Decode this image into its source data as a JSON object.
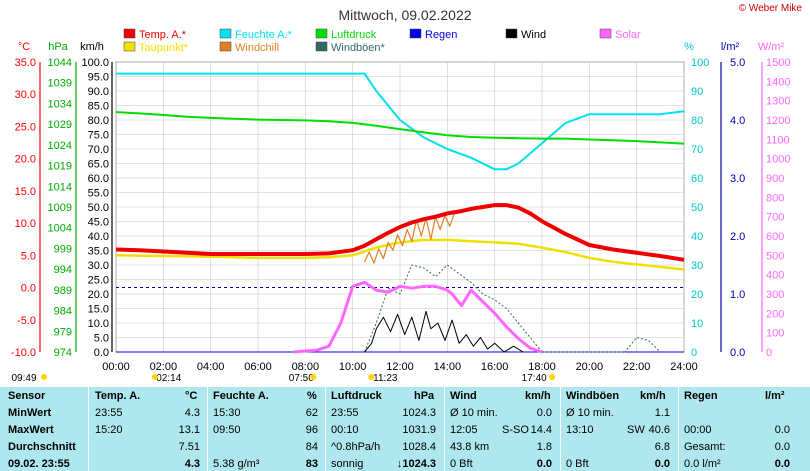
{
  "credit": "© Weber Mike",
  "colors": {
    "temp": "#ee0000",
    "dew": "#f0e000",
    "humidity": "#00e0f0",
    "windchill": "#e08020",
    "pressure": "#00dd00",
    "rain": "#0000ee",
    "wind": "#000000",
    "gust": "#336666",
    "solar": "#ff66ff",
    "table_bg": "#aee8ee",
    "axis_celsius": "#ff0000",
    "axis_hpa": "#00aa00",
    "axis_percent": "#00c8c8",
    "axis_rain": "#0000aa",
    "axis_solar": "#ff66ff"
  },
  "chart_data": {
    "type": "line",
    "title": "Mittwoch, 09.02.2022",
    "x_unit": "hours",
    "x_ticks": [
      "00:00",
      "02:00",
      "04:00",
      "06:00",
      "08:00",
      "10:00",
      "12:00",
      "14:00",
      "16:00",
      "18:00",
      "20:00",
      "22:00",
      "24:00"
    ],
    "xlim": [
      0,
      24
    ],
    "grid": true,
    "legend_placement": "top",
    "legend": [
      {
        "label": "Temp. A.*",
        "color": "#ee0000"
      },
      {
        "label": "Feuchte A.*",
        "color": "#00e0f0"
      },
      {
        "label": "Luftdruck",
        "color": "#00dd00"
      },
      {
        "label": "Regen",
        "color": "#0000ee"
      },
      {
        "label": "Wind",
        "color": "#000000"
      },
      {
        "label": "Solar",
        "color": "#ff66ff"
      },
      {
        "label": "Taupunkt*",
        "color": "#f0e000"
      },
      {
        "label": "Windchill",
        "color": "#e08020"
      },
      {
        "label": "Windböen*",
        "color": "#336666"
      }
    ],
    "axes": {
      "celsius": {
        "label": "°C",
        "ticks": [
          "35.0",
          "30.0",
          "25.0",
          "20.0",
          "15.0",
          "10.0",
          "5.0",
          "0.0",
          "-5.0",
          "-10.0"
        ],
        "range": [
          -10,
          35
        ]
      },
      "hpa": {
        "label": "hPa",
        "ticks": [
          "1044",
          "1039",
          "1034",
          "1029",
          "1024",
          "1019",
          "1014",
          "1009",
          "1004",
          "999",
          "994",
          "989",
          "984",
          "979",
          "974"
        ],
        "range": [
          974,
          1044
        ]
      },
      "kmh": {
        "label": "km/h",
        "ticks": [
          "100.0",
          "95.0",
          "90.0",
          "85.0",
          "80.0",
          "75.0",
          "70.0",
          "65.0",
          "60.0",
          "55.0",
          "50.0",
          "45.0",
          "40.0",
          "35.0",
          "30.0",
          "25.0",
          "20.0",
          "15.0",
          "10.0",
          "5.0",
          "0.0"
        ],
        "range": [
          0,
          100
        ]
      },
      "percent": {
        "label": "%",
        "ticks": [
          "100",
          "90",
          "80",
          "70",
          "60",
          "50",
          "40",
          "30",
          "20",
          "10",
          "0"
        ],
        "range": [
          0,
          100
        ]
      },
      "rain": {
        "label": "l/m²",
        "ticks": [
          "5.0",
          "4.0",
          "3.0",
          "2.0",
          "1.0",
          "0.0"
        ],
        "range": [
          0,
          5
        ]
      },
      "solar": {
        "label": "W/m²",
        "ticks": [
          "1500",
          "1400",
          "1300",
          "1200",
          "1100",
          "1000",
          "900",
          "800",
          "700",
          "600",
          "500",
          "400",
          "300",
          "200",
          "100",
          "0"
        ],
        "range": [
          0,
          1500
        ]
      }
    },
    "series": [
      {
        "name": "Temp. A.*",
        "axis": "celsius",
        "x": [
          0,
          1,
          2,
          3,
          4,
          5,
          6,
          7,
          8,
          9,
          10,
          10.5,
          11,
          11.5,
          12,
          12.5,
          13,
          13.5,
          14,
          14.5,
          15,
          15.5,
          16,
          16.5,
          17,
          17.5,
          18,
          19,
          20,
          21,
          22,
          23,
          24
        ],
        "y": [
          5.9,
          5.8,
          5.6,
          5.4,
          5.2,
          5.2,
          5.2,
          5.2,
          5.2,
          5.3,
          5.8,
          6.5,
          7.5,
          8.5,
          9.4,
          10.1,
          10.6,
          11.0,
          11.5,
          11.8,
          12.2,
          12.5,
          12.8,
          12.8,
          12.4,
          11.5,
          10.3,
          8.3,
          6.6,
          5.9,
          5.4,
          4.9,
          4.3
        ]
      },
      {
        "name": "Taupunkt*",
        "axis": "celsius",
        "x": [
          0,
          2,
          4,
          6,
          8,
          9,
          10,
          11,
          12,
          13,
          14,
          15,
          16,
          17,
          18,
          19,
          20,
          21,
          22,
          23,
          24
        ],
        "y": [
          5.0,
          4.9,
          4.8,
          4.6,
          4.6,
          4.7,
          5.0,
          6.2,
          7.0,
          7.4,
          7.4,
          7.2,
          7.0,
          6.8,
          6.2,
          5.5,
          4.6,
          4.0,
          3.6,
          3.2,
          2.8
        ]
      },
      {
        "name": "Windchill",
        "axis": "celsius",
        "x": [
          10.5,
          10.7,
          10.9,
          11.1,
          11.3,
          11.5,
          11.7,
          11.9,
          12.1,
          12.3,
          12.5,
          12.7,
          12.9,
          13.1,
          13.3,
          13.5,
          13.7,
          13.9,
          14.1,
          14.3
        ],
        "y": [
          4.0,
          5.5,
          3.8,
          6.0,
          4.5,
          7.0,
          5.8,
          8.2,
          6.5,
          9.0,
          7.2,
          10.5,
          8.0,
          10.8,
          7.5,
          11.0,
          9.0,
          11.2,
          9.5,
          11.5
        ]
      },
      {
        "name": "Feuchte A.*",
        "axis": "percent",
        "x": [
          0,
          2,
          4,
          6,
          8,
          9,
          10,
          10.5,
          11,
          12,
          13,
          14,
          15,
          16,
          16.5,
          17,
          18,
          19,
          20,
          21,
          22,
          23,
          24
        ],
        "y": [
          96,
          96,
          96,
          96,
          96,
          96,
          96,
          96,
          90,
          80,
          74,
          70,
          67,
          63,
          63,
          65,
          72,
          79,
          82,
          82,
          82,
          82,
          83
        ]
      },
      {
        "name": "Luftdruck",
        "axis": "hpa",
        "x": [
          0,
          1,
          2,
          3,
          4,
          5,
          6,
          7,
          8,
          9,
          10,
          11,
          12,
          13,
          14,
          15,
          16,
          17,
          18,
          19,
          20,
          21,
          22,
          23,
          24
        ],
        "y": [
          1031.9,
          1031.6,
          1031.2,
          1030.8,
          1030.5,
          1030.3,
          1030.1,
          1030.0,
          1029.9,
          1029.7,
          1029.3,
          1028.6,
          1027.8,
          1027.0,
          1026.3,
          1025.9,
          1025.7,
          1025.6,
          1025.5,
          1025.5,
          1025.3,
          1025.1,
          1024.9,
          1024.6,
          1024.3
        ]
      },
      {
        "name": "Wind",
        "axis": "kmh",
        "x": [
          10.5,
          10.8,
          11.0,
          11.3,
          11.6,
          11.9,
          12.2,
          12.5,
          12.8,
          13.1,
          13.3,
          13.6,
          13.9,
          14.2,
          14.5,
          14.8,
          15.1,
          15.4,
          15.7,
          16.0,
          16.4,
          16.8,
          17.2
        ],
        "y": [
          0,
          3,
          8,
          12,
          7,
          13,
          6,
          12,
          4,
          14,
          8,
          10,
          4,
          11,
          3,
          6,
          2,
          5,
          1,
          3,
          0,
          2,
          0
        ]
      },
      {
        "name": "Windböen*",
        "axis": "kmh",
        "x": [
          10.5,
          11.0,
          11.5,
          12.0,
          12.5,
          13.0,
          13.5,
          14.0,
          14.5,
          15.0,
          15.5,
          16.0,
          16.5,
          17.0,
          17.5,
          18.0,
          21.5,
          22.0,
          22.5,
          23.0
        ],
        "y": [
          0,
          10,
          22,
          20,
          30,
          29,
          26,
          30,
          27,
          24,
          20,
          18,
          15,
          10,
          5,
          0,
          0,
          5,
          4,
          0
        ]
      },
      {
        "name": "Solar",
        "axis": "solar",
        "x": [
          7.5,
          8.0,
          8.5,
          9.0,
          9.5,
          10.0,
          10.5,
          11.0,
          11.5,
          12.0,
          12.5,
          13.0,
          13.5,
          14.0,
          14.2,
          14.6,
          15.0,
          15.5,
          16.0,
          16.5,
          17.0,
          17.5,
          18.0
        ],
        "y": [
          0,
          5,
          10,
          30,
          150,
          340,
          360,
          320,
          310,
          340,
          330,
          340,
          340,
          320,
          300,
          240,
          320,
          260,
          200,
          130,
          70,
          20,
          0
        ]
      },
      {
        "name": "Regen",
        "axis": "rain",
        "x": [
          0,
          24
        ],
        "y": [
          0,
          0
        ]
      }
    ],
    "min_markers": [
      {
        "time": "09:49",
        "pos": 0.0
      },
      {
        "time": "02:14",
        "pos": 2.23
      },
      {
        "time": "07:50",
        "pos": 7.83
      },
      {
        "time": "11:23",
        "pos": 11.38
      },
      {
        "time": "17:40",
        "pos": 17.67
      }
    ]
  },
  "table": {
    "headers": {
      "sensor": "Sensor",
      "temp": "Temp. A.",
      "temp_unit": "°C",
      "hum": "Feuchte A.",
      "hum_unit": "%",
      "press": "Luftdruck",
      "press_unit": "hPa",
      "wind": "Wind",
      "wind_unit": "km/h",
      "gust": "Windböen",
      "gust_unit": "km/h",
      "rain": "Regen",
      "rain_unit": "l/m²"
    },
    "rows": [
      {
        "label": "MinWert",
        "t_time": "23:55",
        "t_val": "4.3",
        "h_time": "15:30",
        "h_val": "62",
        "p_time": "23:55",
        "p_val": "1024.3",
        "w_time": "Ø 10 min.",
        "w_val": "0.0",
        "g_time": "Ø 10 min.",
        "g_val": "1.1",
        "r_time": "",
        "r_val": ""
      },
      {
        "label": "MaxWert",
        "t_time": "15:20",
        "t_val": "13.1",
        "h_time": "09:50",
        "h_val": "96",
        "p_time": "00:10",
        "p_val": "1031.9",
        "w_time": "12:05",
        "w_dir": "S-SO",
        "w_val": "14.4",
        "g_time": "13:10",
        "g_dir": "SW",
        "g_val": "40.6",
        "r_time": "00:00",
        "r_val": "0.0"
      },
      {
        "label": "Durchschnitt",
        "t_time": "",
        "t_val": "7.51",
        "h_time": "",
        "h_val": "84",
        "p_time": "^0.8hPa/h",
        "p_val": "1028.4",
        "w_time": "43.8 km",
        "w_val": "1.8",
        "g_time": "",
        "g_val": "6.8",
        "r_time": "Gesamt:",
        "r_val": "0.0"
      },
      {
        "label": "09.02. 23:55",
        "t_time": "",
        "t_val": "4.3",
        "h_time": "5.38 g/m³",
        "h_val": "83",
        "p_time": "sonnig",
        "p_val": "↓1024.3",
        "w_time": "0 Bft",
        "w_val": "0.0",
        "g_time": "0 Bft",
        "g_val": "0.0",
        "r_time": "0.0 l/m²",
        "r_val": "0.0"
      }
    ]
  }
}
